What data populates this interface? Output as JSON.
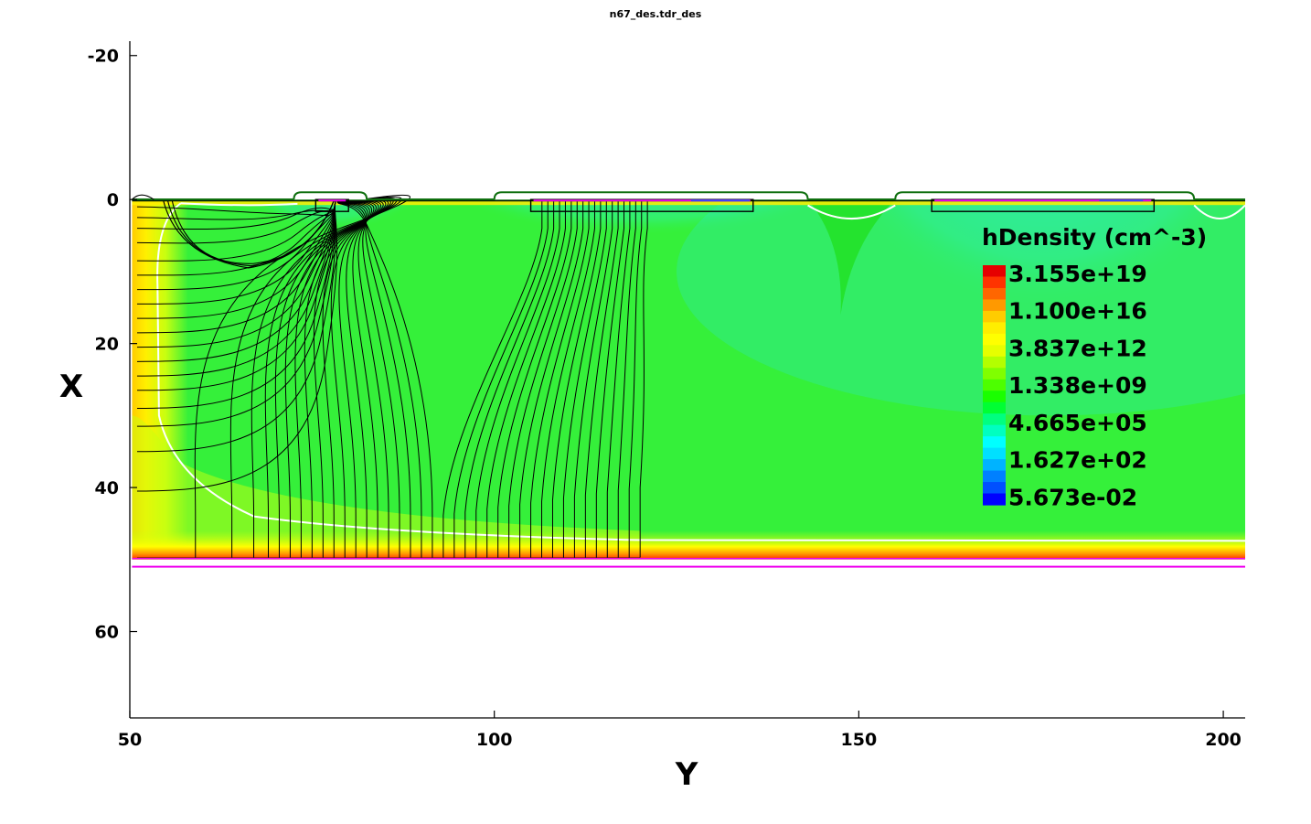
{
  "chart_data": {
    "type": "heatmap",
    "title": "n67_des.tdr_des",
    "xlabel": "Y",
    "ylabel": "X",
    "xlim": [
      50,
      203
    ],
    "ylim": [
      -22,
      72
    ],
    "y_inverted": true,
    "x_ticks": [
      "50",
      "100",
      "150",
      "200"
    ],
    "y_ticks": [
      "-20",
      "0",
      "20",
      "40",
      "60"
    ],
    "x_tick_values": [
      50,
      100,
      150,
      200
    ],
    "y_tick_values": [
      -20,
      0,
      20,
      40,
      60
    ],
    "device_region": {
      "y_range": [
        50.3,
        203
      ],
      "x_range": [
        0,
        50
      ]
    },
    "bottom_contact_x": 51,
    "gates": [
      {
        "y_start": 72.5,
        "y_end": 82.5
      },
      {
        "y_start": 100,
        "y_end": 143
      },
      {
        "y_start": 155,
        "y_end": 196
      }
    ],
    "trenches": [
      {
        "y_start": 75.5,
        "y_end": 80
      },
      {
        "y_start": 105,
        "y_end": 135.5
      },
      {
        "y_start": 160,
        "y_end": 190.5
      }
    ],
    "streamlines": {
      "left_wall_exits": [
        1,
        2.5,
        4,
        6,
        8.5,
        10.5,
        12.5,
        14.5,
        16.5,
        18.5,
        20.5,
        22.5,
        24.5,
        26.5,
        29,
        31.5,
        35,
        40.5
      ],
      "bottom_origins": [
        59,
        64,
        67,
        69,
        70.5,
        72,
        73.5,
        75,
        76.5,
        78,
        79.5,
        81,
        82.5,
        84,
        85.5,
        87,
        88.5,
        90,
        91.5,
        93,
        94.5,
        96,
        97.5,
        99,
        100.5,
        102,
        103.5,
        105,
        106.5,
        108,
        109.5,
        111,
        112.5,
        114,
        115.5,
        117,
        118.5,
        120
      ]
    },
    "legend": {
      "title": "hDensity (cm^-3)",
      "placement": "top-right",
      "labels": [
        "3.155e+19",
        "1.100e+16",
        "3.837e+12",
        "1.338e+09",
        "4.665e+05",
        "1.627e+02",
        "5.673e-02"
      ],
      "colors": [
        "#e60000",
        "#ff3300",
        "#ff6600",
        "#ff9900",
        "#ffcc00",
        "#ffee00",
        "#ffff00",
        "#e6ff00",
        "#b3ff00",
        "#80ff00",
        "#4dff00",
        "#1aff00",
        "#00ff33",
        "#00ff80",
        "#00ffc0",
        "#00ffff",
        "#00e0ff",
        "#00b3ff",
        "#0080ff",
        "#0050ff",
        "#0000ff"
      ]
    },
    "colors": {
      "substrate_field": "#35f03a",
      "depletion_cyan": "#2de8b0",
      "accumulation_yellow": "#e6ff00",
      "gate_outline": "#107010",
      "oxide_magenta": "#ee00ee",
      "streamline": "#000000",
      "junction_line": "#ffffff"
    }
  }
}
